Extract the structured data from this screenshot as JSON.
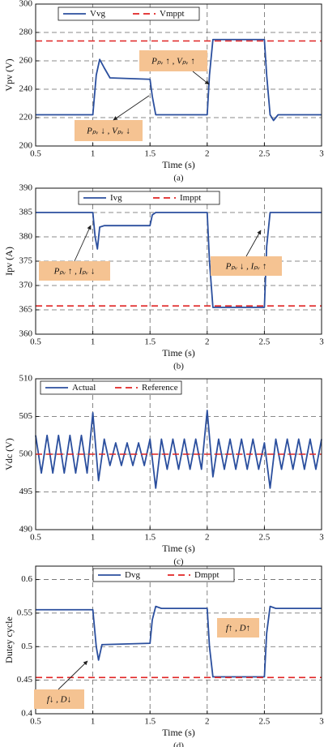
{
  "chart_data": [
    {
      "type": "line",
      "caption": "(a)",
      "x_label": "Time (s)",
      "y_label": "Vpv (V)",
      "xlim": [
        0.5,
        3
      ],
      "xticks": [
        0.5,
        1,
        1.5,
        2,
        2.5,
        3
      ],
      "ylim": [
        200,
        300
      ],
      "yticks": [
        200,
        220,
        240,
        260,
        280,
        300
      ],
      "grid": true,
      "legend": "upper left",
      "series": [
        {
          "name": "Vvg",
          "color": "#2b4f9e",
          "dash": "solid",
          "x": [
            0.5,
            1.0,
            1.03,
            1.06,
            1.1,
            1.15,
            1.5,
            1.52,
            1.55,
            2.0,
            2.02,
            2.05,
            2.5,
            2.52,
            2.55,
            2.58,
            2.62,
            3.0
          ],
          "values": [
            222,
            222,
            250,
            261,
            255,
            248,
            247,
            235,
            222,
            222,
            250,
            275,
            275,
            250,
            222,
            218,
            222,
            222
          ]
        },
        {
          "name": "Vmppt",
          "color": "#e02424",
          "dash": "dashed",
          "x": [
            0.5,
            3
          ],
          "values": [
            274,
            274
          ]
        }
      ],
      "annotations": [
        "Pₚᵥ ↑ , Vₚᵥ ↑",
        "Pₚᵥ ↓ , Vₚᵥ ↓"
      ]
    },
    {
      "type": "line",
      "caption": "(b)",
      "x_label": "Time (s)",
      "y_label": "Ipv (A)",
      "xlim": [
        0.5,
        3
      ],
      "xticks": [
        0.5,
        1,
        1.5,
        2,
        2.5,
        3
      ],
      "ylim": [
        360,
        390
      ],
      "yticks": [
        360,
        365,
        370,
        375,
        380,
        385,
        390
      ],
      "grid": true,
      "legend": "upper left",
      "series": [
        {
          "name": "Ivg",
          "color": "#2b4f9e",
          "dash": "solid",
          "x": [
            0.5,
            1.0,
            1.02,
            1.04,
            1.06,
            1.1,
            1.5,
            1.52,
            1.55,
            2.0,
            2.02,
            2.05,
            2.5,
            2.52,
            2.55,
            3.0
          ],
          "values": [
            385,
            385,
            380,
            377.5,
            382,
            382.3,
            382.3,
            384.5,
            385,
            385,
            375,
            365.5,
            365.5,
            378,
            385,
            385
          ]
        },
        {
          "name": "Imppt",
          "color": "#e02424",
          "dash": "dashed",
          "x": [
            0.5,
            3
          ],
          "values": [
            365.8,
            365.8
          ]
        }
      ],
      "annotations": [
        "Pₚᵥ ↑ , Iₚᵥ ↓",
        "Pₚᵥ ↓ , Iₚᵥ ↑"
      ]
    },
    {
      "type": "line",
      "caption": "(c)",
      "x_label": "Time (s)",
      "y_label": "Vdc (V)",
      "xlim": [
        0.5,
        3
      ],
      "xticks": [
        0.5,
        1,
        1.5,
        2,
        2.5,
        3
      ],
      "ylim": [
        490,
        510
      ],
      "yticks": [
        490,
        495,
        500,
        505,
        510
      ],
      "grid": true,
      "legend": "upper left",
      "series": [
        {
          "name": "Actual",
          "color": "#2b4f9e",
          "dash": "solid",
          "x": [
            0.5,
            0.55,
            0.6,
            0.65,
            0.7,
            0.75,
            0.8,
            0.85,
            0.9,
            0.95,
            1.0,
            1.05,
            1.1,
            1.15,
            1.2,
            1.25,
            1.3,
            1.35,
            1.4,
            1.45,
            1.5,
            1.55,
            1.6,
            1.65,
            1.7,
            1.75,
            1.8,
            1.85,
            1.9,
            1.95,
            2.0,
            2.05,
            2.1,
            2.15,
            2.2,
            2.25,
            2.3,
            2.35,
            2.4,
            2.45,
            2.5,
            2.55,
            2.6,
            2.65,
            2.7,
            2.75,
            2.8,
            2.85,
            2.9,
            2.95,
            3.0
          ],
          "values": [
            502.5,
            497.5,
            502.5,
            497.5,
            502.5,
            497.5,
            502.5,
            497.5,
            502.5,
            497.5,
            505.5,
            496.5,
            502,
            498.5,
            501.5,
            498.5,
            501.5,
            498.5,
            501.5,
            498.5,
            502,
            495.5,
            502,
            498,
            502,
            498,
            502,
            498,
            502,
            498,
            505.8,
            497,
            502,
            498,
            502,
            498,
            502,
            498,
            502,
            498,
            501.5,
            495.5,
            502,
            498,
            502,
            498,
            502,
            498,
            502,
            498,
            502
          ]
        },
        {
          "name": "Reference",
          "color": "#e02424",
          "dash": "dashed",
          "x": [
            0.5,
            3
          ],
          "values": [
            500,
            500
          ]
        }
      ],
      "annotations": []
    },
    {
      "type": "line",
      "caption": "(d)",
      "x_label": "Time (s)",
      "y_label": "Dutey cycle",
      "xlim": [
        0.5,
        3
      ],
      "xticks": [
        0.5,
        1,
        1.5,
        2,
        2.5,
        3
      ],
      "ylim": [
        0.4,
        0.62
      ],
      "yticks": [
        0.4,
        0.45,
        0.5,
        0.55,
        0.6
      ],
      "grid": true,
      "legend": "upper left",
      "series": [
        {
          "name": "Dvg",
          "color": "#2b4f9e",
          "dash": "solid",
          "x": [
            0.5,
            1.0,
            1.03,
            1.05,
            1.08,
            1.5,
            1.52,
            1.55,
            1.6,
            2.0,
            2.02,
            2.05,
            2.5,
            2.52,
            2.55,
            2.6,
            3.0
          ],
          "values": [
            0.555,
            0.555,
            0.5,
            0.48,
            0.503,
            0.505,
            0.54,
            0.56,
            0.557,
            0.557,
            0.5,
            0.455,
            0.455,
            0.52,
            0.56,
            0.557,
            0.557
          ]
        },
        {
          "name": "Dmppt",
          "color": "#e02424",
          "dash": "dashed",
          "x": [
            0.5,
            3
          ],
          "values": [
            0.454,
            0.454
          ]
        }
      ],
      "annotations": [
        "f↓ , D↓",
        "f↑ , D↑"
      ]
    }
  ]
}
